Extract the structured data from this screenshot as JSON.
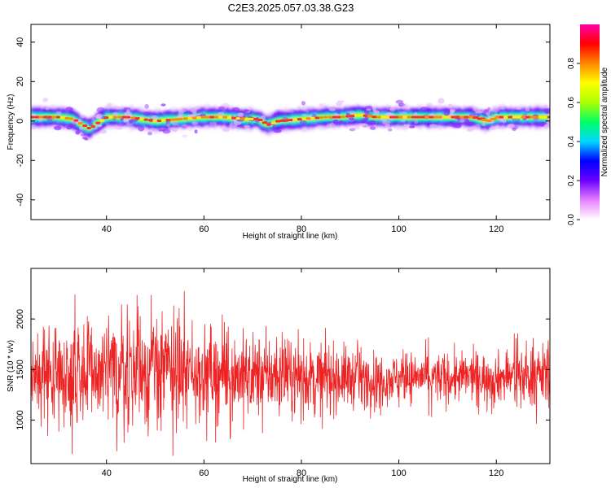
{
  "title": "C2E3.2025.057.03.38.G23",
  "chart_data": [
    {
      "type": "heatmap",
      "xlabel": "Height of straight line (km)",
      "ylabel": "Frequency (Hz)",
      "xlim": [
        24.5,
        131
      ],
      "ylim": [
        -50,
        49
      ],
      "x_ticks": [
        40,
        60,
        80,
        100,
        120
      ],
      "y_ticks": [
        -40,
        -20,
        0,
        20,
        40
      ],
      "colorbar": {
        "label": "Normalized spectral amplitude",
        "range": [
          0,
          1
        ],
        "ticks": [
          0.0,
          0.2,
          0.4,
          0.6,
          0.8
        ],
        "colors": [
          "#ffffff",
          "#e680ff",
          "#6a00ff",
          "#0000ff",
          "#00d8ff",
          "#00ff66",
          "#aaff00",
          "#ffff00",
          "#ff8800",
          "#ff0000",
          "#ff00aa"
        ]
      },
      "ridge": {
        "x": [
          25,
          30,
          33,
          35,
          36.5,
          38,
          40,
          44,
          47,
          50,
          55,
          60,
          64,
          68,
          71,
          73,
          75,
          80,
          85,
          88,
          92,
          95,
          100,
          105,
          110,
          115,
          118,
          120,
          125,
          131
        ],
        "y": [
          2,
          2,
          1,
          -2,
          -4,
          -1,
          2,
          2,
          1,
          0,
          1,
          2,
          2,
          1,
          1,
          -2,
          0,
          1,
          2,
          2,
          3,
          2,
          2,
          2,
          2,
          2,
          0,
          2,
          2,
          2
        ]
      },
      "grid": false
    },
    {
      "type": "line",
      "xlabel": "Height of straight line (km)",
      "ylabel": "SNR (10 * v/v)",
      "xlim": [
        24.5,
        131
      ],
      "ylim": [
        570,
        2500
      ],
      "x_ticks": [
        40,
        60,
        80,
        100,
        120
      ],
      "y_ticks": [
        1000,
        1500,
        2000
      ],
      "color": "#ee2222",
      "envelope": {
        "x": [
          25,
          30,
          35,
          40,
          45,
          50,
          55,
          60,
          65,
          70,
          75,
          80,
          85,
          90,
          95,
          100,
          105,
          110,
          115,
          120,
          125,
          131
        ],
        "mean": [
          1450,
          1460,
          1480,
          1450,
          1470,
          1500,
          1480,
          1470,
          1450,
          1440,
          1430,
          1420,
          1430,
          1420,
          1410,
          1420,
          1430,
          1410,
          1430,
          1420,
          1430,
          1450
        ],
        "amplitude": [
          380,
          400,
          560,
          480,
          520,
          560,
          460,
          380,
          380,
          360,
          340,
          300,
          300,
          270,
          230,
          210,
          220,
          230,
          210,
          220,
          250,
          280
        ]
      },
      "grid": false
    }
  ]
}
